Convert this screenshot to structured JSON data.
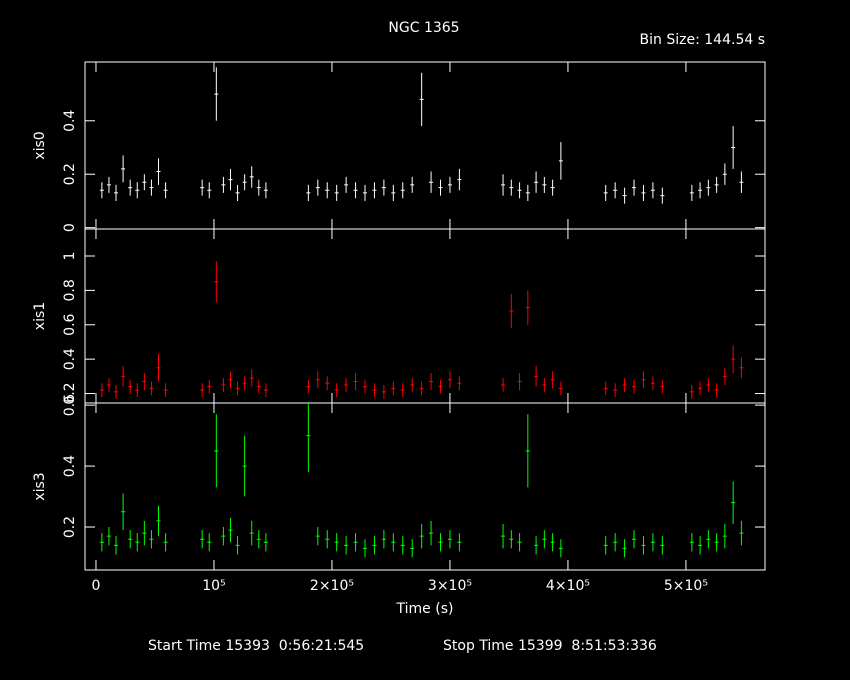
{
  "title": "NGC 1365",
  "bin_size": "Bin Size: 144.54 s",
  "start_time": "Start Time 15393  0:56:21:545",
  "stop_time": "Stop Time 15399  8:51:53:336",
  "chart_data": [
    {
      "type": "errorbar",
      "ylabel": "xis0",
      "color": "#ffffff",
      "xlim": [
        -9300,
        567000
      ],
      "ylim": [
        -0.005,
        0.62
      ],
      "yticks": [
        0,
        0.2,
        0.4
      ],
      "x": [
        5000,
        11000,
        17000,
        23000,
        29000,
        35000,
        41000,
        47000,
        53000,
        59000,
        90000,
        96000,
        102000,
        108000,
        114000,
        120000,
        126000,
        132000,
        138000,
        144000,
        180000,
        188000,
        196000,
        204000,
        212000,
        220000,
        228000,
        236000,
        244000,
        252000,
        260000,
        268000,
        276000,
        284000,
        292000,
        300000,
        308000,
        345000,
        352000,
        359000,
        366000,
        373000,
        380000,
        387000,
        394000,
        432000,
        440000,
        448000,
        456000,
        464000,
        472000,
        480000,
        505000,
        512000,
        519000,
        526000,
        533000,
        540000,
        547000
      ],
      "values": [
        0.14,
        0.16,
        0.13,
        0.22,
        0.15,
        0.14,
        0.17,
        0.15,
        0.21,
        0.14,
        0.15,
        0.14,
        0.5,
        0.16,
        0.18,
        0.13,
        0.17,
        0.19,
        0.15,
        0.14,
        0.13,
        0.15,
        0.14,
        0.13,
        0.16,
        0.14,
        0.13,
        0.14,
        0.15,
        0.13,
        0.14,
        0.16,
        0.48,
        0.17,
        0.15,
        0.16,
        0.18,
        0.16,
        0.15,
        0.14,
        0.13,
        0.17,
        0.16,
        0.15,
        0.25,
        0.13,
        0.14,
        0.12,
        0.15,
        0.13,
        0.14,
        0.12,
        0.13,
        0.14,
        0.15,
        0.16,
        0.2,
        0.3,
        0.17
      ],
      "errors": [
        0.03,
        0.03,
        0.03,
        0.05,
        0.03,
        0.03,
        0.03,
        0.03,
        0.05,
        0.03,
        0.03,
        0.03,
        0.1,
        0.03,
        0.04,
        0.03,
        0.03,
        0.04,
        0.03,
        0.03,
        0.03,
        0.03,
        0.03,
        0.03,
        0.03,
        0.03,
        0.03,
        0.03,
        0.03,
        0.03,
        0.03,
        0.03,
        0.1,
        0.04,
        0.03,
        0.03,
        0.04,
        0.04,
        0.03,
        0.03,
        0.03,
        0.04,
        0.03,
        0.03,
        0.07,
        0.03,
        0.03,
        0.03,
        0.03,
        0.03,
        0.03,
        0.03,
        0.03,
        0.03,
        0.03,
        0.03,
        0.04,
        0.08,
        0.04
      ]
    },
    {
      "type": "errorbar",
      "ylabel": "xis1",
      "color": "#ff0000",
      "xlim": [
        -9300,
        567000
      ],
      "ylim": [
        0.145,
        1.157
      ],
      "yticks": [
        0.2,
        0.4,
        0.6,
        0.8,
        1
      ],
      "x": [
        5000,
        11000,
        17000,
        23000,
        29000,
        35000,
        41000,
        47000,
        53000,
        59000,
        90000,
        96000,
        102000,
        108000,
        114000,
        120000,
        126000,
        132000,
        138000,
        144000,
        180000,
        188000,
        196000,
        204000,
        212000,
        220000,
        228000,
        236000,
        244000,
        252000,
        260000,
        268000,
        276000,
        284000,
        292000,
        300000,
        308000,
        345000,
        352000,
        359000,
        366000,
        373000,
        380000,
        387000,
        394000,
        432000,
        440000,
        448000,
        456000,
        464000,
        472000,
        480000,
        505000,
        512000,
        519000,
        526000,
        533000,
        540000,
        547000
      ],
      "values": [
        0.22,
        0.25,
        0.21,
        0.3,
        0.24,
        0.22,
        0.27,
        0.23,
        0.35,
        0.22,
        0.22,
        0.24,
        0.85,
        0.25,
        0.28,
        0.23,
        0.26,
        0.29,
        0.24,
        0.22,
        0.24,
        0.28,
        0.26,
        0.22,
        0.25,
        0.27,
        0.24,
        0.22,
        0.21,
        0.23,
        0.22,
        0.25,
        0.23,
        0.27,
        0.24,
        0.28,
        0.26,
        0.25,
        0.68,
        0.27,
        0.7,
        0.3,
        0.25,
        0.28,
        0.23,
        0.23,
        0.22,
        0.25,
        0.24,
        0.28,
        0.26,
        0.24,
        0.21,
        0.23,
        0.25,
        0.22,
        0.3,
        0.4,
        0.35
      ],
      "errors": [
        0.04,
        0.04,
        0.04,
        0.06,
        0.04,
        0.04,
        0.05,
        0.04,
        0.08,
        0.04,
        0.04,
        0.04,
        0.12,
        0.04,
        0.05,
        0.04,
        0.04,
        0.05,
        0.04,
        0.04,
        0.04,
        0.05,
        0.04,
        0.04,
        0.04,
        0.05,
        0.04,
        0.04,
        0.04,
        0.04,
        0.04,
        0.04,
        0.04,
        0.05,
        0.04,
        0.05,
        0.04,
        0.04,
        0.1,
        0.05,
        0.1,
        0.06,
        0.04,
        0.05,
        0.04,
        0.04,
        0.04,
        0.04,
        0.04,
        0.05,
        0.04,
        0.04,
        0.04,
        0.04,
        0.04,
        0.04,
        0.05,
        0.08,
        0.06
      ]
    },
    {
      "type": "errorbar",
      "ylabel": "xis3",
      "color": "#00ff00",
      "xlabel": "Time (s)",
      "xlim": [
        -9300,
        567000
      ],
      "ylim": [
        0.059,
        0.607
      ],
      "yticks": [
        0.2,
        0.4,
        0.6
      ],
      "xticks": [
        0,
        {
          "value": 100000,
          "label": "10⁵"
        },
        {
          "value": 200000,
          "label": "2×10⁵"
        },
        {
          "value": 300000,
          "label": "3×10⁵"
        },
        {
          "value": 400000,
          "label": "4×10⁵"
        },
        {
          "value": 500000,
          "label": "5×10⁵"
        }
      ],
      "x": [
        5000,
        11000,
        17000,
        23000,
        29000,
        35000,
        41000,
        47000,
        53000,
        59000,
        90000,
        96000,
        102000,
        108000,
        114000,
        120000,
        126000,
        132000,
        138000,
        144000,
        180000,
        188000,
        196000,
        204000,
        212000,
        220000,
        228000,
        236000,
        244000,
        252000,
        260000,
        268000,
        276000,
        284000,
        292000,
        300000,
        308000,
        345000,
        352000,
        359000,
        366000,
        373000,
        380000,
        387000,
        394000,
        432000,
        440000,
        448000,
        456000,
        464000,
        472000,
        480000,
        505000,
        512000,
        519000,
        526000,
        533000,
        540000,
        547000
      ],
      "values": [
        0.15,
        0.17,
        0.14,
        0.25,
        0.16,
        0.15,
        0.18,
        0.16,
        0.22,
        0.15,
        0.16,
        0.15,
        0.45,
        0.17,
        0.19,
        0.14,
        0.4,
        0.18,
        0.16,
        0.15,
        0.5,
        0.17,
        0.16,
        0.15,
        0.14,
        0.15,
        0.13,
        0.14,
        0.16,
        0.15,
        0.14,
        0.13,
        0.17,
        0.18,
        0.15,
        0.16,
        0.15,
        0.17,
        0.16,
        0.15,
        0.45,
        0.14,
        0.16,
        0.15,
        0.13,
        0.14,
        0.15,
        0.13,
        0.16,
        0.14,
        0.15,
        0.14,
        0.15,
        0.14,
        0.16,
        0.15,
        0.17,
        0.28,
        0.18
      ],
      "errors": [
        0.03,
        0.03,
        0.03,
        0.06,
        0.03,
        0.03,
        0.04,
        0.03,
        0.05,
        0.03,
        0.03,
        0.03,
        0.12,
        0.03,
        0.04,
        0.03,
        0.1,
        0.04,
        0.03,
        0.03,
        0.12,
        0.03,
        0.03,
        0.03,
        0.03,
        0.03,
        0.03,
        0.03,
        0.03,
        0.03,
        0.03,
        0.03,
        0.04,
        0.04,
        0.03,
        0.03,
        0.03,
        0.04,
        0.03,
        0.03,
        0.12,
        0.03,
        0.03,
        0.03,
        0.03,
        0.03,
        0.03,
        0.03,
        0.03,
        0.03,
        0.03,
        0.03,
        0.03,
        0.03,
        0.03,
        0.03,
        0.04,
        0.07,
        0.04
      ]
    }
  ]
}
